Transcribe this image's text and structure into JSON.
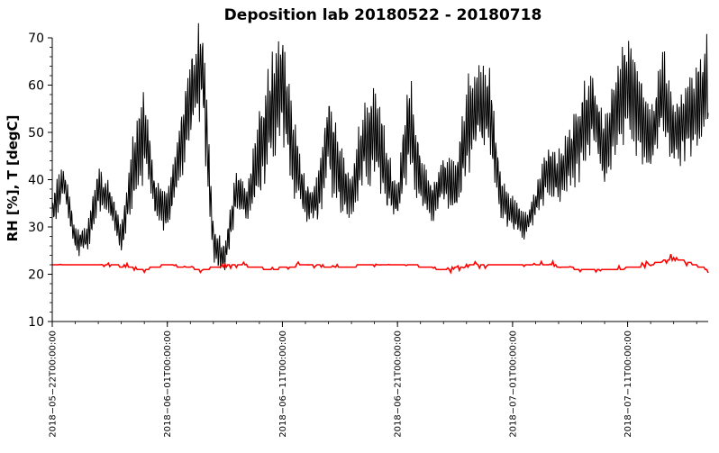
{
  "chart_data": {
    "type": "line",
    "title": "Deposition lab 20180522 - 20180718",
    "ylabel": "RH [%], T [degC]",
    "xlabel": "",
    "x_range": [
      "2018-05-22",
      "2018-07-18"
    ],
    "ylim": [
      10,
      70
    ],
    "yticks": [
      10,
      20,
      30,
      40,
      50,
      60,
      70
    ],
    "xticks": [
      {
        "date": "2018-05-22",
        "label": "2018−05−22T00:00:00"
      },
      {
        "date": "2018-06-01",
        "label": "2018−06−01T00:00:00"
      },
      {
        "date": "2018-06-11",
        "label": "2018−06−11T00:00:00"
      },
      {
        "date": "2018-06-21",
        "label": "2018−06−21T00:00:00"
      },
      {
        "date": "2018-07-01",
        "label": "2018−07−01T00:00:00"
      },
      {
        "date": "2018-07-11",
        "label": "2018−07−11T00:00:00"
      }
    ],
    "minor_x_ticks_days": 2,
    "grid": false,
    "legend": "none",
    "series": [
      {
        "color": "#000000",
        "x": [
          "2018-05-22",
          "2018-05-23",
          "2018-05-24",
          "2018-05-25",
          "2018-05-26",
          "2018-05-27",
          "2018-05-28",
          "2018-05-29",
          "2018-05-30",
          "2018-05-31",
          "2018-06-01",
          "2018-06-02",
          "2018-06-03",
          "2018-06-04",
          "2018-06-05",
          "2018-06-06",
          "2018-06-07",
          "2018-06-08",
          "2018-06-09",
          "2018-06-10",
          "2018-06-11",
          "2018-06-12",
          "2018-06-13",
          "2018-06-14",
          "2018-06-15",
          "2018-06-16",
          "2018-06-17",
          "2018-06-18",
          "2018-06-19",
          "2018-06-20",
          "2018-06-21",
          "2018-06-22",
          "2018-06-23",
          "2018-06-24",
          "2018-06-25",
          "2018-06-26",
          "2018-06-27",
          "2018-06-28",
          "2018-06-29",
          "2018-06-30",
          "2018-07-01",
          "2018-07-02",
          "2018-07-03",
          "2018-07-04",
          "2018-07-05",
          "2018-07-06",
          "2018-07-07",
          "2018-07-08",
          "2018-07-09",
          "2018-07-10",
          "2018-07-11",
          "2018-07-12",
          "2018-07-13",
          "2018-07-14",
          "2018-07-15",
          "2018-07-16",
          "2018-07-17",
          "2018-07-18"
        ],
        "values": [
          33,
          40,
          27,
          27,
          38,
          36,
          27,
          42,
          50,
          36,
          33,
          45,
          57,
          65,
          27,
          23,
          38,
          35,
          45,
          55,
          60,
          45,
          35,
          35,
          50,
          40,
          36,
          47,
          50,
          41,
          35,
          52,
          40,
          35,
          40,
          38,
          50,
          55,
          55,
          36,
          33,
          30,
          35,
          42,
          40,
          45,
          50,
          55,
          45,
          55,
          60,
          55,
          48,
          58,
          50,
          52,
          55,
          60
        ],
        "amplitude": [
          4,
          4,
          3,
          3,
          6,
          4,
          3,
          8,
          10,
          4,
          5,
          8,
          10,
          12,
          5,
          3,
          6,
          5,
          12,
          14,
          12,
          10,
          5,
          5,
          12,
          8,
          5,
          10,
          12,
          8,
          5,
          12,
          8,
          5,
          6,
          6,
          12,
          10,
          10,
          5,
          4,
          3,
          4,
          6,
          6,
          8,
          10,
          10,
          8,
          10,
          12,
          12,
          8,
          12,
          8,
          8,
          10,
          12
        ]
      },
      {
        "color": "#ff0000",
        "x": [
          "2018-05-22",
          "2018-05-27",
          "2018-05-30",
          "2018-06-01",
          "2018-06-04",
          "2018-06-07",
          "2018-06-10",
          "2018-06-13",
          "2018-06-16",
          "2018-06-19",
          "2018-06-22",
          "2018-06-25",
          "2018-06-28",
          "2018-07-01",
          "2018-07-04",
          "2018-07-07",
          "2018-07-10",
          "2018-07-13",
          "2018-07-15",
          "2018-07-18"
        ],
        "values": [
          22,
          22,
          21,
          22,
          21,
          22,
          21,
          22,
          21.5,
          22,
          22,
          21,
          22,
          22,
          22,
          21,
          21,
          22,
          23.5,
          21
        ]
      }
    ]
  }
}
